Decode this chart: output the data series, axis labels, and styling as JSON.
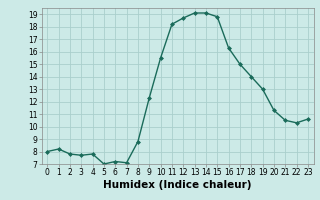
{
  "x": [
    0,
    1,
    2,
    3,
    4,
    5,
    6,
    7,
    8,
    9,
    10,
    11,
    12,
    13,
    14,
    15,
    16,
    17,
    18,
    19,
    20,
    21,
    22,
    23
  ],
  "y": [
    8,
    8.2,
    7.8,
    7.7,
    7.8,
    7.0,
    7.2,
    7.1,
    8.8,
    12.3,
    15.5,
    18.2,
    18.7,
    19.1,
    19.1,
    18.8,
    16.3,
    15.0,
    14.0,
    13.0,
    11.3,
    10.5,
    10.3,
    10.6
  ],
  "line_color": "#1a6b5a",
  "marker": "D",
  "marker_size": 2,
  "bg_color": "#cceae7",
  "grid_color": "#aacfcc",
  "xlabel": "Humidex (Indice chaleur)",
  "ylim": [
    7,
    19.5
  ],
  "xlim": [
    -0.5,
    23.5
  ],
  "yticks": [
    7,
    8,
    9,
    10,
    11,
    12,
    13,
    14,
    15,
    16,
    17,
    18,
    19
  ],
  "xticks": [
    0,
    1,
    2,
    3,
    4,
    5,
    6,
    7,
    8,
    9,
    10,
    11,
    12,
    13,
    14,
    15,
    16,
    17,
    18,
    19,
    20,
    21,
    22,
    23
  ],
  "tick_fontsize": 5.5,
  "label_fontsize": 7.5
}
